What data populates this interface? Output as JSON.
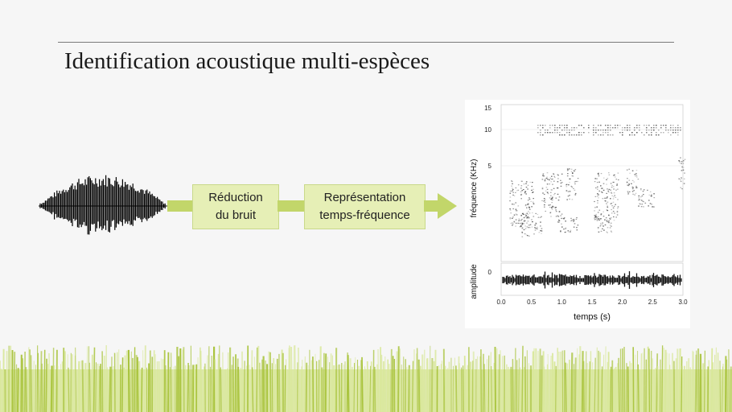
{
  "slide": {
    "title": "Identification acoustique multi-espèces"
  },
  "pipeline": {
    "step1": {
      "line1": "Réduction",
      "line2": "du bruit"
    },
    "step2": {
      "line1": "Représentation",
      "line2": "temps-fréquence"
    }
  },
  "spectrogram": {
    "y_label_top": "fréquence (KHz)",
    "y_label_bottom": "amplitude",
    "x_label": "temps (s)",
    "freq_ticks": [
      "15",
      "10",
      "5"
    ],
    "amp_tick": "0",
    "time_ticks": [
      "0.0",
      "0.5",
      "1.0",
      "1.5",
      "2.0",
      "2.5",
      "3.0"
    ]
  },
  "colors": {
    "accent_green": "#c2d66a",
    "box_fill": "#e6efb6",
    "grass_light": "#d9e89a",
    "grass_dark": "#a9c43c"
  }
}
